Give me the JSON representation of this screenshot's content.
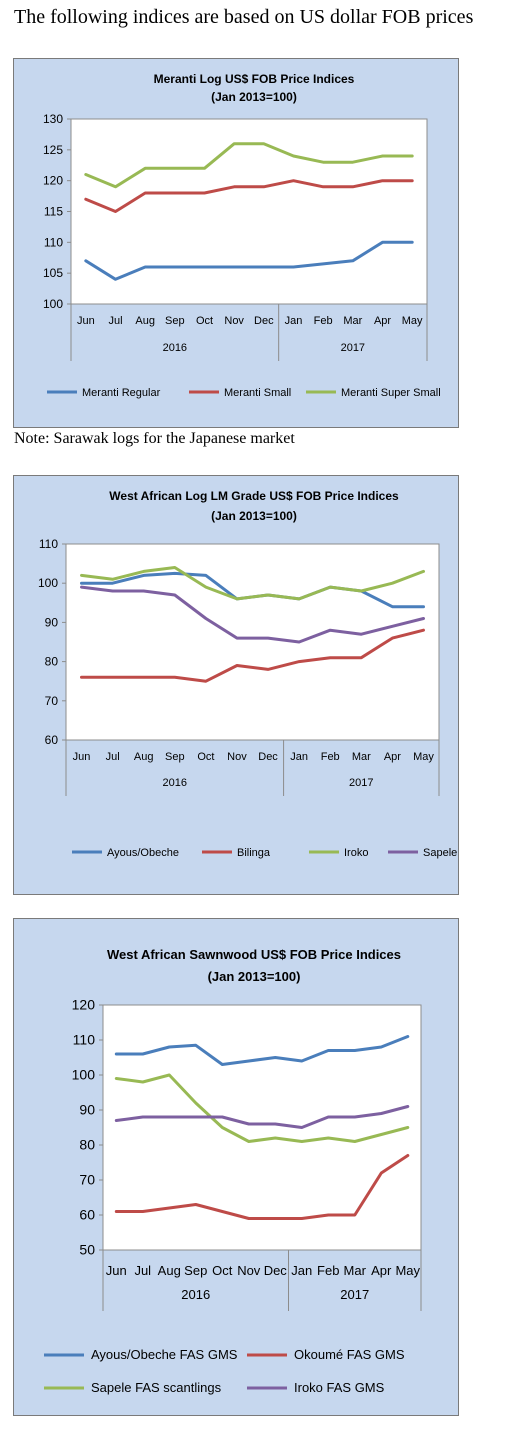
{
  "heading": "The following indices are based on US dollar FOB prices",
  "note": "Note: Sarawak logs for the Japanese market",
  "chart_data": [
    {
      "type": "line",
      "title": "Meranti Log US$ FOB Price Indices",
      "subtitle": "(Jan 2013=100)",
      "categories": [
        "Jun",
        "Jul",
        "Aug",
        "Sep",
        "Oct",
        "Nov",
        "Dec",
        "Jan",
        "Feb",
        "Mar",
        "Apr",
        "May"
      ],
      "year_groups": [
        {
          "label": "2016",
          "count": 7
        },
        {
          "label": "2017",
          "count": 5
        }
      ],
      "ylim": [
        100,
        130
      ],
      "yticks": [
        100,
        105,
        110,
        115,
        120,
        125,
        130
      ],
      "grid": false,
      "legend_position": "bottom",
      "series": [
        {
          "name": "Meranti Regular",
          "color": "#4a7ebb",
          "values": [
            107,
            104,
            106,
            106,
            106,
            106,
            106,
            106,
            106.5,
            107,
            110,
            110
          ]
        },
        {
          "name": "Meranti Small",
          "color": "#be4b48",
          "values": [
            117,
            115,
            118,
            118,
            118,
            119,
            119,
            120,
            119,
            119,
            120,
            120
          ]
        },
        {
          "name": "Meranti Super Small",
          "color": "#98b954",
          "values": [
            121,
            119,
            122,
            122,
            122,
            126,
            126,
            124,
            123,
            123,
            124,
            124
          ]
        }
      ]
    },
    {
      "type": "line",
      "title": "West African Log LM Grade US$ FOB Price Indices",
      "subtitle": "(Jan 2013=100)",
      "categories": [
        "Jun",
        "Jul",
        "Aug",
        "Sep",
        "Oct",
        "Nov",
        "Dec",
        "Jan",
        "Feb",
        "Mar",
        "Apr",
        "May"
      ],
      "year_groups": [
        {
          "label": "2016",
          "count": 7
        },
        {
          "label": "2017",
          "count": 5
        }
      ],
      "ylim": [
        60,
        110
      ],
      "yticks": [
        60,
        70,
        80,
        90,
        100,
        110
      ],
      "grid": false,
      "legend_position": "bottom",
      "series": [
        {
          "name": "Ayous/Obeche",
          "color": "#4a7ebb",
          "values": [
            100,
            100,
            102,
            102.5,
            102,
            96,
            97,
            96,
            99,
            98,
            94,
            94
          ]
        },
        {
          "name": "Bilinga",
          "color": "#be4b48",
          "values": [
            76,
            76,
            76,
            76,
            75,
            79,
            78,
            80,
            81,
            81,
            86,
            88
          ]
        },
        {
          "name": "Iroko",
          "color": "#98b954",
          "values": [
            102,
            101,
            103,
            104,
            99,
            96,
            97,
            96,
            99,
            98,
            100,
            103
          ]
        },
        {
          "name": "Sapele",
          "color": "#7d60a0",
          "values": [
            99,
            98,
            98,
            97,
            91,
            86,
            86,
            85,
            88,
            87,
            89,
            91
          ]
        }
      ]
    },
    {
      "type": "line",
      "title": "West African Sawnwood US$ FOB Price Indices",
      "subtitle": "(Jan 2013=100)",
      "categories": [
        "Jun",
        "Jul",
        "Aug",
        "Sep",
        "Oct",
        "Nov",
        "Dec",
        "Jan",
        "Feb",
        "Mar",
        "Apr",
        "May"
      ],
      "year_groups": [
        {
          "label": "2016",
          "count": 7
        },
        {
          "label": "2017",
          "count": 5
        }
      ],
      "ylim": [
        50,
        120
      ],
      "yticks": [
        50,
        60,
        70,
        80,
        90,
        100,
        110,
        120
      ],
      "grid": false,
      "legend_position": "bottom",
      "series": [
        {
          "name": "Ayous/Obeche  FAS GMS",
          "color": "#4a7ebb",
          "values": [
            106,
            106,
            108,
            108.5,
            103,
            104,
            105,
            104,
            107,
            107,
            108,
            111
          ]
        },
        {
          "name": "Okoumé  FAS GMS",
          "color": "#be4b48",
          "values": [
            61,
            61,
            62,
            63,
            61,
            59,
            59,
            59,
            60,
            60,
            72,
            77
          ]
        },
        {
          "name": "Sapele FAS scantlings",
          "color": "#98b954",
          "values": [
            99,
            98,
            100,
            92,
            85,
            81,
            82,
            81,
            82,
            81,
            83,
            85
          ]
        },
        {
          "name": "Iroko FAS GMS",
          "color": "#7d60a0",
          "values": [
            87,
            88,
            88,
            88,
            88,
            86,
            86,
            85,
            88,
            88,
            89,
            91
          ]
        }
      ]
    }
  ]
}
